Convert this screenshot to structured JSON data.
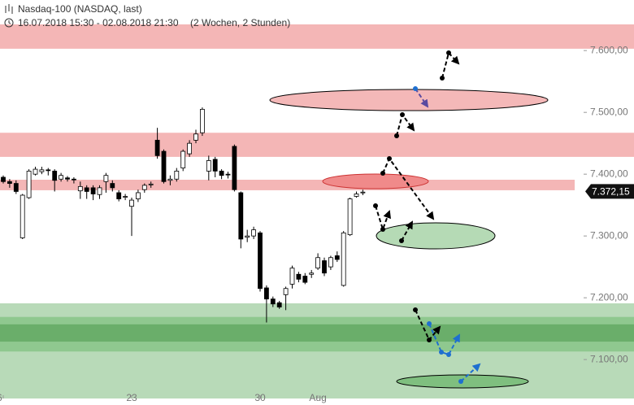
{
  "header": {
    "title": "Nasdaq-100 (NASDAQ, last)",
    "period": "16.07.2018 15:30 - 02.08.2018 21:30",
    "duration": "(2 Wochen, 2 Stunden)"
  },
  "chart_data": {
    "type": "candlestick",
    "categories": [
      "6",
      null,
      null,
      null,
      null,
      null,
      null,
      null,
      null,
      null,
      null,
      null,
      null,
      null,
      null,
      null,
      null,
      null,
      null,
      null,
      "23",
      null,
      null,
      null,
      null,
      null,
      null,
      null,
      null,
      null,
      null,
      null,
      null,
      null,
      null,
      null,
      null,
      null,
      null,
      null,
      "30",
      null,
      null,
      null,
      null,
      null,
      null,
      null,
      null,
      "Aug",
      null,
      null,
      null,
      null,
      null,
      null,
      null
    ],
    "open": [
      7395,
      7388,
      7385,
      7297,
      7362,
      7400,
      7404,
      7407,
      7405,
      7392,
      7394,
      7392,
      7373,
      7378,
      7378,
      7367,
      7388,
      7385,
      7370,
      7363,
      7348,
      7360,
      7375,
      7383,
      7455,
      7437,
      7390,
      7392,
      7410,
      7433,
      7455,
      7467,
      7405,
      7424,
      7405,
      7400,
      7445,
      7370,
      7298,
      7300,
      7305,
      7216,
      7198,
      7192,
      7205,
      7222,
      7238,
      7235,
      7238,
      7248,
      7260,
      7250,
      7268,
      7220,
      7302,
      7364,
      7370
    ],
    "high": [
      7398,
      7392,
      7390,
      7368,
      7408,
      7412,
      7412,
      7410,
      7408,
      7402,
      7397,
      7395,
      7388,
      7382,
      7382,
      7382,
      7402,
      7390,
      7374,
      7368,
      7362,
      7375,
      7385,
      7388,
      7475,
      7440,
      7398,
      7410,
      7440,
      7455,
      7472,
      7508,
      7430,
      7428,
      7408,
      7404,
      7448,
      7372,
      7310,
      7315,
      7308,
      7220,
      7202,
      7195,
      7218,
      7252,
      7242,
      7240,
      7245,
      7272,
      7265,
      7268,
      7275,
      7308,
      7362,
      7372,
      7375
    ],
    "low": [
      7385,
      7378,
      7368,
      7295,
      7360,
      7398,
      7400,
      7398,
      7372,
      7388,
      7388,
      7385,
      7360,
      7360,
      7358,
      7360,
      7370,
      7372,
      7356,
      7358,
      7300,
      7355,
      7370,
      7378,
      7425,
      7385,
      7382,
      7388,
      7405,
      7428,
      7450,
      7462,
      7390,
      7395,
      7392,
      7393,
      7372,
      7280,
      7290,
      7295,
      7210,
      7160,
      7185,
      7182,
      7180,
      7215,
      7225,
      7222,
      7232,
      7245,
      7235,
      7245,
      7258,
      7218,
      7300,
      7362,
      7366
    ],
    "close": [
      7388,
      7385,
      7372,
      7366,
      7405,
      7408,
      7407,
      7406,
      7390,
      7398,
      7392,
      7391,
      7380,
      7372,
      7368,
      7378,
      7398,
      7378,
      7360,
      7364,
      7358,
      7370,
      7382,
      7384,
      7430,
      7388,
      7392,
      7405,
      7437,
      7450,
      7465,
      7505,
      7422,
      7405,
      7398,
      7399,
      7375,
      7295,
      7300,
      7310,
      7215,
      7198,
      7190,
      7185,
      7215,
      7248,
      7230,
      7225,
      7240,
      7265,
      7240,
      7265,
      7262,
      7305,
      7360,
      7368,
      7371
    ],
    "ylim": [
      7037,
      7645
    ],
    "yticks": [
      {
        "value": 7100,
        "label": "7.100,00"
      },
      {
        "value": 7200,
        "label": "7.200,00"
      },
      {
        "value": 7300,
        "label": "7.300,00"
      },
      {
        "value": 7400,
        "label": "7.400,00"
      },
      {
        "value": 7500,
        "label": "7.500,00"
      },
      {
        "value": 7600,
        "label": "7.600,00"
      }
    ],
    "last_price": {
      "value": 7372.15,
      "label": "7.372,15"
    },
    "zones": [
      {
        "low": 7603,
        "high": 7645,
        "color": "#f4b6b6"
      },
      {
        "low": 7428,
        "high": 7467,
        "color": "#f4b6b6"
      },
      {
        "low": 7374,
        "high": 7391,
        "color": "#f4b6b6"
      },
      {
        "low": 7037,
        "high": 7191,
        "color": "#b8dab8"
      },
      {
        "low": 7113,
        "high": 7169,
        "color": "#8fc88f"
      },
      {
        "low": 7129,
        "high": 7157,
        "color": "#6aae6a"
      }
    ]
  }
}
